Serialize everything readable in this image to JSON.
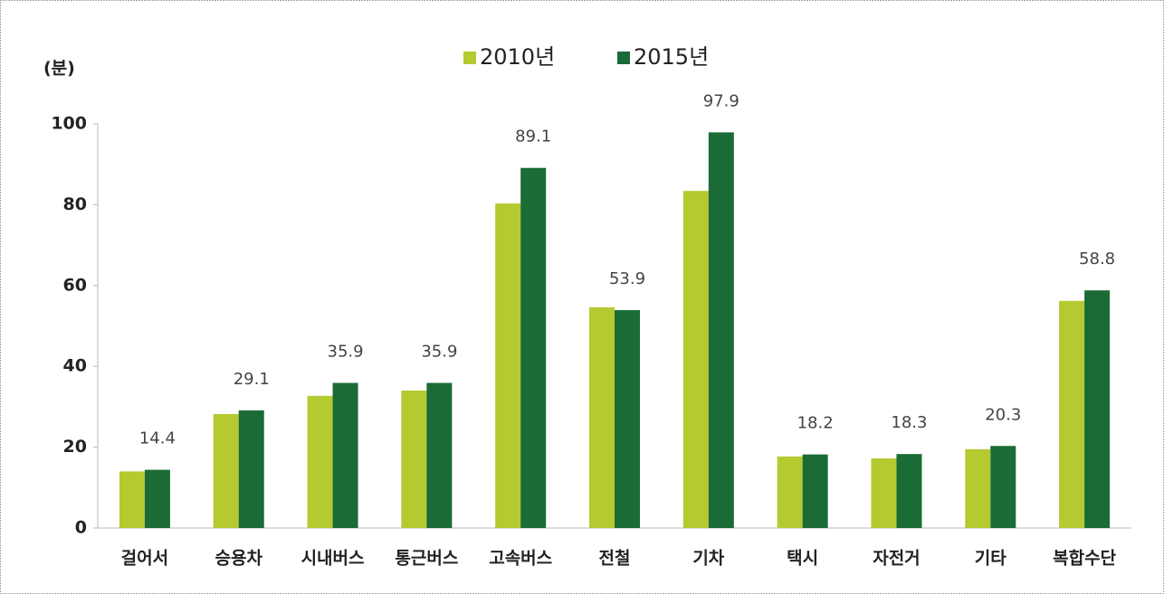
{
  "chart_data": {
    "type": "bar",
    "y_label": "(분)",
    "categories": [
      "걸어서",
      "승용차",
      "시내버스",
      "통근버스",
      "고속버스",
      "전철",
      "기차",
      "택시",
      "자전거",
      "기타",
      "복합수단"
    ],
    "series": [
      {
        "name": "2010년",
        "color": "#b5c930",
        "values": [
          14.0,
          28.2,
          32.7,
          34.0,
          80.3,
          54.6,
          83.4,
          17.7,
          17.2,
          19.5,
          56.2
        ],
        "data_labels": false
      },
      {
        "name": "2015년",
        "color": "#1a6b35",
        "values": [
          14.4,
          29.1,
          35.9,
          35.9,
          89.1,
          53.9,
          97.9,
          18.2,
          18.3,
          20.3,
          58.8
        ],
        "data_labels": true
      }
    ],
    "ylim": [
      0,
      100
    ],
    "yticks": [
      0,
      20,
      40,
      60,
      80,
      100
    ],
    "legend": "top"
  }
}
